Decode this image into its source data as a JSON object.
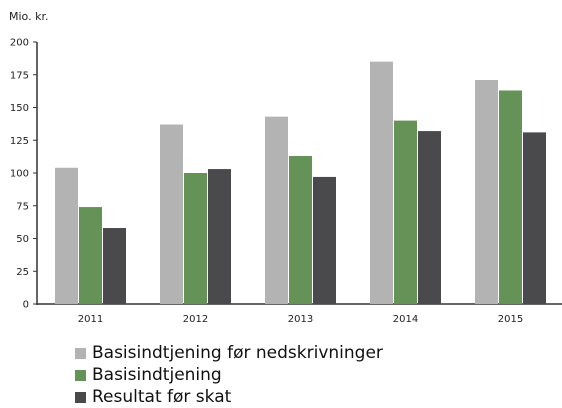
{
  "chart_data": {
    "type": "bar",
    "unit_label": "Mio. kr.",
    "title": "",
    "xlabel": "",
    "ylabel": "",
    "categories": [
      "2011",
      "2012",
      "2013",
      "2014",
      "2015"
    ],
    "ylim": [
      0,
      200
    ],
    "yticks": [
      0,
      25,
      50,
      75,
      100,
      125,
      150,
      175,
      200
    ],
    "grid": false,
    "legend_position": "bottom-left",
    "series": [
      {
        "name": "Basisindtjening før nedskrivninger",
        "color": "#b3b3b3",
        "values": [
          104,
          137,
          143,
          185,
          171
        ]
      },
      {
        "name": "Basisindtjening",
        "color": "#659357",
        "values": [
          74,
          100,
          113,
          140,
          163
        ]
      },
      {
        "name": "Resultat før skat",
        "color": "#4a4a4c",
        "values": [
          58,
          103,
          97,
          132,
          131
        ]
      }
    ]
  }
}
